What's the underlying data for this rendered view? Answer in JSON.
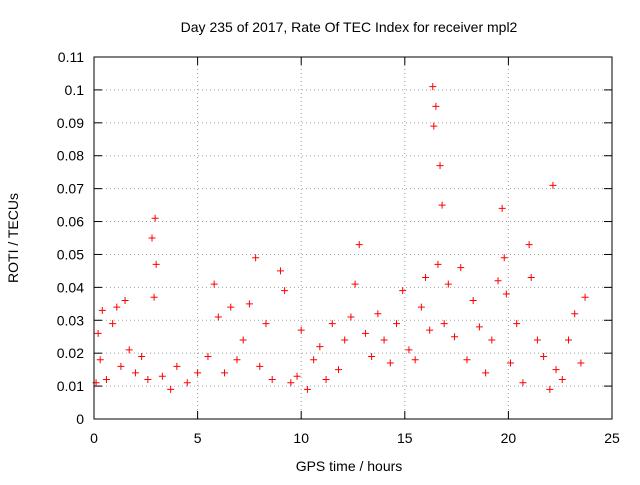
{
  "chart_data": {
    "type": "scatter",
    "title": "Day 235 of 2017, Rate Of TEC Index for receiver mpl2",
    "xlabel": "GPS time / hours",
    "ylabel": "ROTI / TECUs",
    "xlim": [
      0,
      25
    ],
    "ylim": [
      0,
      0.11
    ],
    "x_ticks": [
      "0",
      "5",
      "10",
      "15",
      "20",
      "25"
    ],
    "y_ticks": [
      "0",
      "0.01",
      "0.02",
      "0.03",
      "0.04",
      "0.05",
      "0.06",
      "0.07",
      "0.08",
      "0.09",
      "0.1",
      "0.11"
    ],
    "grid": true,
    "marker": "+",
    "series": [
      {
        "color": "#ff0000",
        "x": [
          0.1,
          0.2,
          0.3,
          0.4,
          0.6,
          0.9,
          1.1,
          1.3,
          1.5,
          1.7,
          2.0,
          2.3,
          2.6,
          2.8,
          2.9,
          2.95,
          3.0,
          3.3,
          3.7,
          4.0,
          4.5,
          5.0,
          5.5,
          5.8,
          6.0,
          6.3,
          6.6,
          6.9,
          7.2,
          7.5,
          7.8,
          8.0,
          8.3,
          8.6,
          9.0,
          9.2,
          9.5,
          9.8,
          10.0,
          10.3,
          10.6,
          10.9,
          11.2,
          11.5,
          11.8,
          12.1,
          12.4,
          12.6,
          12.8,
          13.1,
          13.4,
          13.7,
          14.0,
          14.3,
          14.6,
          14.9,
          15.2,
          15.5,
          15.8,
          16.0,
          16.2,
          16.35,
          16.4,
          16.5,
          16.6,
          16.7,
          16.8,
          16.9,
          17.1,
          17.4,
          17.7,
          18.0,
          18.3,
          18.6,
          18.9,
          19.2,
          19.5,
          19.7,
          19.8,
          19.9,
          20.1,
          20.4,
          20.7,
          21.0,
          21.1,
          21.4,
          21.7,
          22.0,
          22.15,
          22.3,
          22.6,
          22.9,
          23.2,
          23.5,
          23.7
        ],
        "y": [
          0.011,
          0.026,
          0.018,
          0.033,
          0.012,
          0.029,
          0.034,
          0.016,
          0.036,
          0.021,
          0.014,
          0.019,
          0.012,
          0.055,
          0.037,
          0.061,
          0.047,
          0.013,
          0.009,
          0.016,
          0.011,
          0.014,
          0.019,
          0.041,
          0.031,
          0.014,
          0.034,
          0.018,
          0.024,
          0.035,
          0.049,
          0.016,
          0.029,
          0.012,
          0.045,
          0.039,
          0.011,
          0.013,
          0.027,
          0.009,
          0.018,
          0.022,
          0.012,
          0.029,
          0.015,
          0.024,
          0.031,
          0.041,
          0.053,
          0.026,
          0.019,
          0.032,
          0.024,
          0.017,
          0.029,
          0.039,
          0.021,
          0.018,
          0.034,
          0.043,
          0.027,
          0.101,
          0.089,
          0.095,
          0.047,
          0.077,
          0.065,
          0.029,
          0.041,
          0.025,
          0.046,
          0.018,
          0.036,
          0.028,
          0.014,
          0.024,
          0.042,
          0.064,
          0.049,
          0.038,
          0.017,
          0.029,
          0.011,
          0.053,
          0.043,
          0.024,
          0.019,
          0.009,
          0.071,
          0.015,
          0.012,
          0.024,
          0.032,
          0.017,
          0.037
        ]
      }
    ]
  }
}
